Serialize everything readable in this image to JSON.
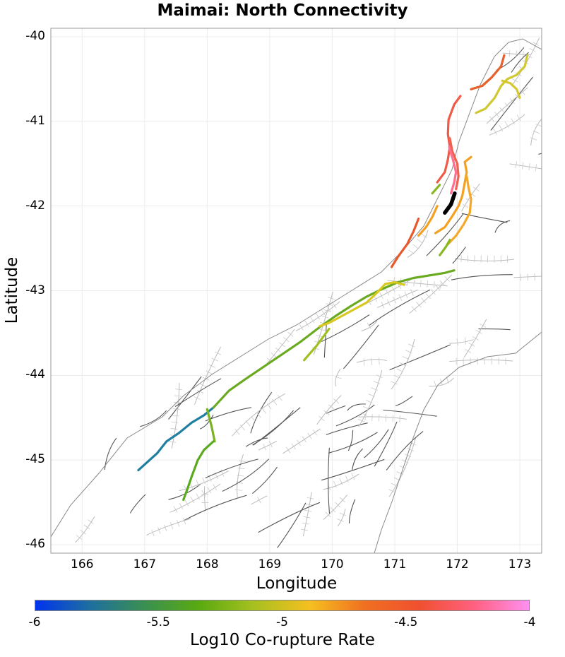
{
  "title": "Maimai: North Connectivity",
  "x_axis": {
    "label": "Longitude",
    "min": 165.5,
    "max": 173.35,
    "ticks": [
      "166",
      "167",
      "168",
      "169",
      "170",
      "171",
      "172",
      "173"
    ]
  },
  "y_axis": {
    "label": "Latitude",
    "min": -46.1,
    "max": -39.9,
    "ticks": [
      "-40",
      "-41",
      "-42",
      "-43",
      "-44",
      "-45",
      "-46"
    ]
  },
  "colorbar": {
    "label": "Log10 Co-rupture Rate",
    "min": -6,
    "max": -4,
    "ticks": [
      "-6",
      "-5.5",
      "-5",
      "-4.5",
      "-4"
    ],
    "colors": [
      "#0033ee",
      "#1e6fa0",
      "#3a9050",
      "#5aaa10",
      "#a8c020",
      "#f5c020",
      "#f07020",
      "#f05030",
      "#ff6080",
      "#ff90f0"
    ]
  },
  "chart_data": {
    "type": "map",
    "title": "Maimai: North Connectivity",
    "xlabel": "Longitude",
    "ylabel": "Latitude",
    "xlim": [
      165.5,
      173.35
    ],
    "ylim": [
      -46.1,
      -39.9
    ],
    "source_fault": {
      "name": "Maimai",
      "color": "#000000",
      "path": [
        [
          171.8,
          -42.08
        ],
        [
          171.9,
          -41.98
        ],
        [
          171.96,
          -41.85
        ]
      ]
    },
    "rupture_segments": [
      {
        "value": -5.72,
        "color": "#1e7fa0",
        "path": [
          [
            166.9,
            -45.12
          ],
          [
            167.05,
            -45.02
          ],
          [
            167.2,
            -44.92
          ],
          [
            167.35,
            -44.78
          ],
          [
            167.55,
            -44.68
          ],
          [
            167.75,
            -44.56
          ],
          [
            167.95,
            -44.47
          ],
          [
            168.1,
            -44.38
          ]
        ]
      },
      {
        "value": -5.35,
        "color": "#6aaa20",
        "path": [
          [
            168.1,
            -44.38
          ],
          [
            168.35,
            -44.18
          ],
          [
            168.6,
            -44.05
          ],
          [
            168.9,
            -43.9
          ],
          [
            169.2,
            -43.75
          ],
          [
            169.5,
            -43.6
          ],
          [
            169.8,
            -43.43
          ],
          [
            170.05,
            -43.3
          ],
          [
            170.3,
            -43.18
          ],
          [
            170.55,
            -43.07
          ],
          [
            170.8,
            -42.98
          ],
          [
            171.05,
            -42.9
          ],
          [
            171.3,
            -42.85
          ],
          [
            171.55,
            -42.82
          ],
          [
            171.8,
            -42.79
          ],
          [
            171.95,
            -42.76
          ]
        ]
      },
      {
        "value": -5.4,
        "color": "#7ab220",
        "path": [
          [
            168.0,
            -44.4
          ],
          [
            168.07,
            -44.6
          ],
          [
            168.12,
            -44.78
          ]
        ]
      },
      {
        "value": -5.45,
        "color": "#5aaa20",
        "path": [
          [
            168.1,
            -44.78
          ],
          [
            167.95,
            -44.88
          ],
          [
            167.85,
            -45.0
          ],
          [
            167.75,
            -45.2
          ],
          [
            167.68,
            -45.35
          ],
          [
            167.62,
            -45.47
          ]
        ]
      },
      {
        "value": -5.2,
        "color": "#a0c020",
        "path": [
          [
            169.55,
            -43.82
          ],
          [
            169.75,
            -43.65
          ],
          [
            169.95,
            -43.45
          ]
        ]
      },
      {
        "value": -5.05,
        "color": "#d8c820",
        "path": [
          [
            169.8,
            -43.42
          ],
          [
            169.95,
            -43.38
          ],
          [
            170.15,
            -43.3
          ],
          [
            170.35,
            -43.22
          ],
          [
            170.55,
            -43.14
          ],
          [
            170.72,
            -43.02
          ],
          [
            170.85,
            -42.92
          ],
          [
            171.0,
            -42.9
          ],
          [
            171.15,
            -42.93
          ]
        ]
      },
      {
        "value": -4.55,
        "color": "#e8582a",
        "path": [
          [
            170.95,
            -42.72
          ],
          [
            171.05,
            -42.6
          ],
          [
            171.2,
            -42.45
          ],
          [
            171.3,
            -42.3
          ],
          [
            171.38,
            -42.15
          ]
        ]
      },
      {
        "value": -4.75,
        "color": "#f5a020",
        "path": [
          [
            171.38,
            -42.35
          ],
          [
            171.5,
            -42.25
          ],
          [
            171.6,
            -42.13
          ],
          [
            171.68,
            -42.0
          ]
        ]
      },
      {
        "value": -5.3,
        "color": "#88b820",
        "path": [
          [
            171.6,
            -41.85
          ],
          [
            171.72,
            -41.75
          ]
        ]
      },
      {
        "value": -4.42,
        "color": "#f05a48",
        "path": [
          [
            171.68,
            -41.72
          ],
          [
            171.8,
            -41.6
          ],
          [
            171.85,
            -41.45
          ],
          [
            171.88,
            -41.3
          ],
          [
            171.85,
            -41.15
          ],
          [
            171.86,
            -40.98
          ],
          [
            171.95,
            -40.8
          ],
          [
            172.05,
            -40.7
          ]
        ]
      },
      {
        "value": -4.45,
        "color": "#f06050",
        "path": [
          [
            171.98,
            -41.8
          ],
          [
            172.02,
            -41.65
          ],
          [
            172.0,
            -41.5
          ],
          [
            171.92,
            -41.35
          ],
          [
            171.88,
            -41.2
          ]
        ]
      },
      {
        "value": -4.25,
        "color": "#ff7090",
        "path": [
          [
            171.9,
            -41.85
          ],
          [
            171.95,
            -41.72
          ],
          [
            171.98,
            -41.6
          ],
          [
            171.93,
            -41.45
          ],
          [
            171.87,
            -41.3
          ]
        ]
      },
      {
        "value": -4.75,
        "color": "#f5a020",
        "path": [
          [
            171.65,
            -42.32
          ],
          [
            171.8,
            -42.25
          ],
          [
            171.92,
            -42.12
          ],
          [
            172.02,
            -42.0
          ],
          [
            172.08,
            -41.88
          ],
          [
            172.12,
            -41.72
          ],
          [
            172.15,
            -41.6
          ],
          [
            172.12,
            -41.48
          ],
          [
            172.22,
            -41.42
          ]
        ]
      },
      {
        "value": -4.8,
        "color": "#f5a828",
        "path": [
          [
            171.85,
            -42.45
          ],
          [
            171.98,
            -42.35
          ],
          [
            172.1,
            -42.22
          ],
          [
            172.2,
            -42.08
          ],
          [
            172.22,
            -41.92
          ],
          [
            172.18,
            -41.78
          ],
          [
            172.15,
            -41.65
          ]
        ]
      },
      {
        "value": -5.3,
        "color": "#88b820",
        "path": [
          [
            171.72,
            -42.58
          ],
          [
            171.82,
            -42.48
          ],
          [
            171.88,
            -42.4
          ]
        ]
      },
      {
        "value": -4.6,
        "color": "#e8602a",
        "path": [
          [
            172.22,
            -40.62
          ],
          [
            172.4,
            -40.58
          ],
          [
            172.55,
            -40.48
          ],
          [
            172.7,
            -40.35
          ],
          [
            172.75,
            -40.22
          ]
        ]
      },
      {
        "value": -4.85,
        "color": "#d0c830",
        "path": [
          [
            172.3,
            -40.9
          ],
          [
            172.45,
            -40.85
          ],
          [
            172.6,
            -40.72
          ],
          [
            172.7,
            -40.58
          ],
          [
            172.8,
            -40.5
          ],
          [
            172.95,
            -40.45
          ],
          [
            173.08,
            -40.35
          ],
          [
            173.12,
            -40.22
          ]
        ]
      },
      {
        "value": -4.85,
        "color": "#d8c830",
        "path": [
          [
            172.72,
            -40.52
          ],
          [
            172.85,
            -40.55
          ],
          [
            172.95,
            -40.62
          ],
          [
            173.0,
            -40.72
          ]
        ]
      }
    ]
  }
}
